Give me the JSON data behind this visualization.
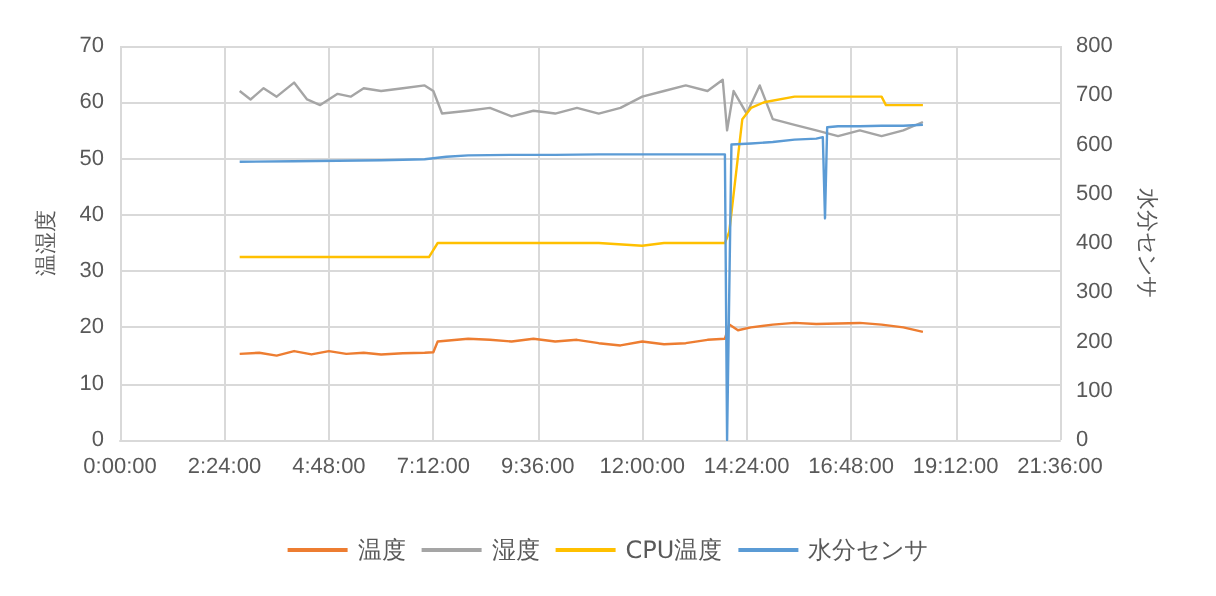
{
  "chart_data": {
    "type": "line",
    "ylabel": "温湿度",
    "y2label": "水分センサ",
    "legend": "bottom",
    "grid": true,
    "marker": "none",
    "line_style": "solid",
    "xlim": [
      0,
      21.6
    ],
    "xticks": [
      {
        "value": 0,
        "label": "0:00:00"
      },
      {
        "value": 2.4,
        "label": "2:24:00"
      },
      {
        "value": 4.8,
        "label": "4:48:00"
      },
      {
        "value": 7.2,
        "label": "7:12:00"
      },
      {
        "value": 9.6,
        "label": "9:36:00"
      },
      {
        "value": 12,
        "label": "12:00:00"
      },
      {
        "value": 14.4,
        "label": "14:24:00"
      },
      {
        "value": 16.8,
        "label": "16:48:00"
      },
      {
        "value": 19.2,
        "label": "19:12:00"
      },
      {
        "value": 21.6,
        "label": "21:36:00"
      }
    ],
    "ylim": [
      0,
      70
    ],
    "yticks": [
      0,
      10,
      20,
      30,
      40,
      50,
      60,
      70
    ],
    "y2lim": [
      0,
      800
    ],
    "y2ticks": [
      0,
      100,
      200,
      300,
      400,
      500,
      600,
      700,
      800
    ],
    "series": [
      {
        "name": "温度",
        "color": "#ed7d31",
        "x": [
          2.75,
          3.2,
          3.6,
          4,
          4.4,
          4.8,
          5.2,
          5.6,
          6,
          6.5,
          7,
          7.2,
          7.3,
          8,
          8.5,
          9,
          9.5,
          10,
          10.5,
          11,
          11.5,
          12,
          12.5,
          13,
          13.5,
          13.9,
          14.0,
          14.2,
          14.5,
          15,
          15.5,
          16,
          16.5,
          17,
          17.5,
          18,
          18.45
        ],
        "values": [
          15.3,
          15.5,
          15,
          15.8,
          15.2,
          15.8,
          15.3,
          15.5,
          15.2,
          15.4,
          15.5,
          15.6,
          17.5,
          18,
          17.8,
          17.5,
          18,
          17.5,
          17.8,
          17.2,
          16.8,
          17.5,
          17,
          17.2,
          17.8,
          18,
          20.5,
          19.5,
          20,
          20.5,
          20.8,
          20.6,
          20.7,
          20.8,
          20.5,
          20,
          19.2
        ]
      },
      {
        "name": "湿度",
        "color": "#a5a5a5",
        "x": [
          2.75,
          3,
          3.3,
          3.6,
          4,
          4.3,
          4.6,
          5,
          5.3,
          5.6,
          6,
          6.5,
          7,
          7.2,
          7.4,
          8,
          8.5,
          9,
          9.5,
          10,
          10.5,
          11,
          11.5,
          12,
          12.5,
          13,
          13.5,
          13.85,
          13.95,
          14.1,
          14.4,
          14.7,
          15,
          15.5,
          16,
          16.5,
          17,
          17.5,
          18,
          18.45
        ],
        "values": [
          62,
          60.5,
          62.5,
          61,
          63.5,
          60.5,
          59.5,
          61.5,
          61,
          62.5,
          62,
          62.5,
          63,
          62,
          58,
          58.5,
          59,
          57.5,
          58.5,
          58,
          59,
          58,
          59,
          61,
          62,
          63,
          62,
          64,
          55,
          62,
          58,
          63,
          57,
          56,
          55,
          54,
          55,
          54,
          55,
          56.5
        ]
      },
      {
        "name": "CPU温度",
        "color": "#ffc000",
        "x": [
          2.75,
          3.5,
          4.5,
          5.5,
          6.5,
          7.1,
          7.3,
          8,
          9,
          10,
          11,
          12,
          12.5,
          13,
          13.9,
          14.0,
          14.3,
          14.5,
          14.8,
          15.5,
          16,
          17,
          17.5,
          17.6,
          18,
          18.45
        ],
        "values": [
          32.5,
          32.5,
          32.5,
          32.5,
          32.5,
          32.5,
          35,
          35,
          35,
          35,
          35,
          34.5,
          35,
          35,
          35,
          37,
          57,
          59,
          60,
          61,
          61,
          61,
          61,
          59.5,
          59.5,
          59.5
        ]
      },
      {
        "name": "水分センサ",
        "color": "#5b9bd5",
        "axis": "y2",
        "x": [
          2.75,
          4,
          5,
          6,
          7,
          7.5,
          8,
          9,
          10,
          11,
          12,
          13,
          13.9,
          13.95,
          14.05,
          14.5,
          15,
          15.5,
          16,
          16.15,
          16.2,
          16.25,
          16.5,
          17,
          17.5,
          18,
          18.45
        ],
        "values": [
          565,
          566,
          567,
          568,
          570,
          575,
          578,
          579,
          579,
          580,
          580,
          580,
          580,
          0,
          600,
          602,
          605,
          610,
          612,
          615,
          450,
          635,
          637,
          637,
          638,
          638,
          640
        ]
      }
    ]
  }
}
